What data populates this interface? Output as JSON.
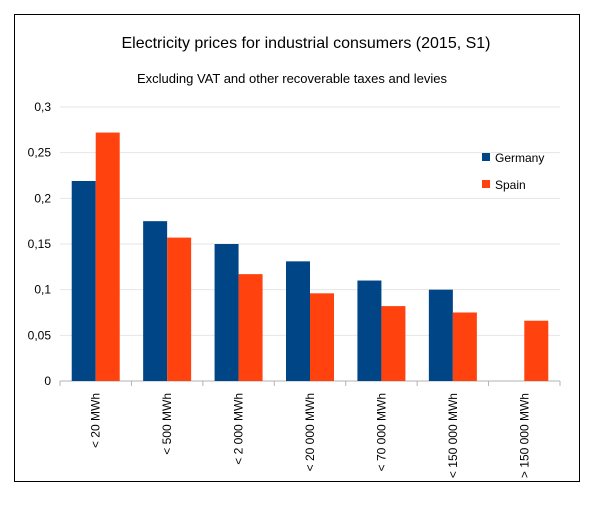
{
  "chart_data": {
    "type": "bar",
    "title": "Electricity prices for industrial consumers (2015, S1)",
    "subtitle": "Excluding VAT and other recoverable taxes and levies",
    "xlabel": "",
    "ylabel": "",
    "ylim": [
      0,
      0.3
    ],
    "yticks": [
      "0",
      "0,05",
      "0,1",
      "0,15",
      "0,2",
      "0,25",
      "0,3"
    ],
    "grid": true,
    "legend_position": "right",
    "categories": [
      "< 20 MWh",
      "< 500 MWh",
      "< 2 000 MWh",
      "< 20 000 MWh",
      "< 70 000 MWh",
      "< 150 000 MWh",
      "> 150 000 MWh"
    ],
    "series": [
      {
        "name": "Germany",
        "color": "#004586",
        "values": [
          0.219,
          0.175,
          0.15,
          0.131,
          0.11,
          0.1,
          null
        ]
      },
      {
        "name": "Spain",
        "color": "#ff420e",
        "values": [
          0.272,
          0.157,
          0.117,
          0.096,
          0.082,
          0.075,
          0.066
        ]
      }
    ]
  }
}
